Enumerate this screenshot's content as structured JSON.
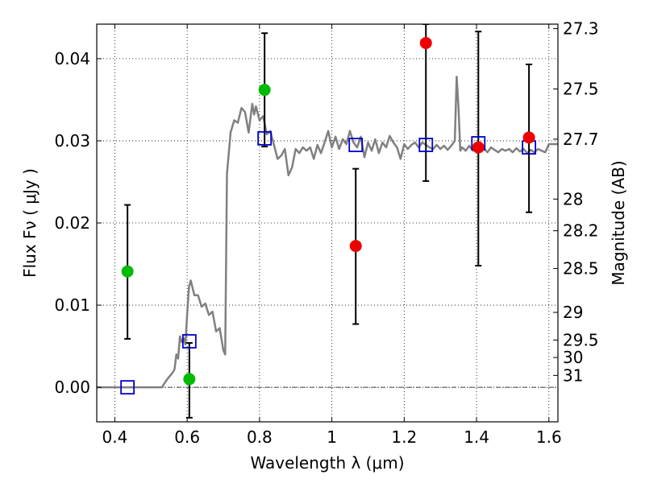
{
  "chart_data": {
    "type": "scatter",
    "xlabel": "Wavelength  λ (μm)",
    "ylabel": "Flux  Fν  ( μJy )",
    "y2label": "Magnitude (AB)",
    "xlim": [
      0.35,
      1.625
    ],
    "ylim": [
      -0.0042,
      0.0442
    ],
    "grid": true,
    "x_ticks": [
      {
        "value": 0.4,
        "label": "0.4"
      },
      {
        "value": 0.6,
        "label": "0.6"
      },
      {
        "value": 0.8,
        "label": "0.8"
      },
      {
        "value": 1.0,
        "label": "1"
      },
      {
        "value": 1.2,
        "label": "1.2"
      },
      {
        "value": 1.4,
        "label": "1.4"
      },
      {
        "value": 1.6,
        "label": "1.6"
      }
    ],
    "y_ticks": [
      {
        "value": 0.0,
        "label": "0.00"
      },
      {
        "value": 0.01,
        "label": "0.01"
      },
      {
        "value": 0.02,
        "label": "0.02"
      },
      {
        "value": 0.03,
        "label": "0.03"
      },
      {
        "value": 0.04,
        "label": "0.04"
      }
    ],
    "mag_ticks": [
      {
        "value": 27.3,
        "label": "27.3"
      },
      {
        "value": 27.5,
        "label": "27.5"
      },
      {
        "value": 27.7,
        "label": "27.7"
      },
      {
        "value": 28,
        "label": "28"
      },
      {
        "value": 28.2,
        "label": "28.2"
      },
      {
        "value": 28.5,
        "label": "28.5"
      },
      {
        "value": 29,
        "label": "29"
      },
      {
        "value": 29.5,
        "label": "29.5"
      },
      {
        "value": 30,
        "label": "30"
      },
      {
        "value": 31,
        "label": "31"
      }
    ],
    "colors": {
      "model": "#808080",
      "model_points": "#0000cc",
      "green_points": "#00bb00",
      "red_points": "#ee0000",
      "errorbar": "#000000",
      "grid": "#000000",
      "zero_line": "#000000"
    },
    "model_spectrum": [
      [
        0.35,
        0.0
      ],
      [
        0.53,
        0.0
      ],
      [
        0.545,
        0.001
      ],
      [
        0.56,
        0.0018
      ],
      [
        0.565,
        0.0022
      ],
      [
        0.57,
        0.004
      ],
      [
        0.575,
        0.0035
      ],
      [
        0.58,
        0.0062
      ],
      [
        0.585,
        0.0055
      ],
      [
        0.59,
        0.006
      ],
      [
        0.595,
        0.0052
      ],
      [
        0.6,
        0.009
      ],
      [
        0.605,
        0.0122
      ],
      [
        0.61,
        0.013
      ],
      [
        0.62,
        0.0112
      ],
      [
        0.63,
        0.0112
      ],
      [
        0.64,
        0.0098
      ],
      [
        0.65,
        0.0102
      ],
      [
        0.66,
        0.0088
      ],
      [
        0.67,
        0.0092
      ],
      [
        0.68,
        0.0068
      ],
      [
        0.69,
        0.0072
      ],
      [
        0.7,
        0.0045
      ],
      [
        0.705,
        0.004
      ],
      [
        0.71,
        0.026
      ],
      [
        0.72,
        0.031
      ],
      [
        0.73,
        0.0325
      ],
      [
        0.74,
        0.0322
      ],
      [
        0.75,
        0.034
      ],
      [
        0.76,
        0.0335
      ],
      [
        0.77,
        0.031
      ],
      [
        0.78,
        0.0345
      ],
      [
        0.785,
        0.0332
      ],
      [
        0.79,
        0.0342
      ],
      [
        0.8,
        0.0325
      ],
      [
        0.81,
        0.033
      ],
      [
        0.82,
        0.0308
      ],
      [
        0.83,
        0.0312
      ],
      [
        0.84,
        0.0295
      ],
      [
        0.85,
        0.0278
      ],
      [
        0.86,
        0.0282
      ],
      [
        0.87,
        0.029
      ],
      [
        0.88,
        0.0258
      ],
      [
        0.89,
        0.0268
      ],
      [
        0.9,
        0.029
      ],
      [
        0.91,
        0.0285
      ],
      [
        0.92,
        0.0292
      ],
      [
        0.93,
        0.0288
      ],
      [
        0.94,
        0.0292
      ],
      [
        0.95,
        0.0278
      ],
      [
        0.96,
        0.0295
      ],
      [
        0.97,
        0.0285
      ],
      [
        0.98,
        0.0298
      ],
      [
        0.99,
        0.0312
      ],
      [
        1.0,
        0.0292
      ],
      [
        1.01,
        0.0305
      ],
      [
        1.02,
        0.029
      ],
      [
        1.03,
        0.0302
      ],
      [
        1.04,
        0.0296
      ],
      [
        1.05,
        0.0312
      ],
      [
        1.06,
        0.0298
      ],
      [
        1.07,
        0.0292
      ],
      [
        1.08,
        0.0305
      ],
      [
        1.09,
        0.028
      ],
      [
        1.1,
        0.0298
      ],
      [
        1.11,
        0.0288
      ],
      [
        1.12,
        0.0302
      ],
      [
        1.13,
        0.0285
      ],
      [
        1.14,
        0.0298
      ],
      [
        1.15,
        0.0292
      ],
      [
        1.16,
        0.0306
      ],
      [
        1.17,
        0.0298
      ],
      [
        1.18,
        0.0292
      ],
      [
        1.19,
        0.0278
      ],
      [
        1.2,
        0.0296
      ],
      [
        1.21,
        0.029
      ],
      [
        1.22,
        0.0295
      ],
      [
        1.23,
        0.0298
      ],
      [
        1.24,
        0.0292
      ],
      [
        1.25,
        0.0298
      ],
      [
        1.26,
        0.0295
      ],
      [
        1.27,
        0.0292
      ],
      [
        1.28,
        0.029
      ],
      [
        1.29,
        0.0295
      ],
      [
        1.3,
        0.029
      ],
      [
        1.31,
        0.0294
      ],
      [
        1.32,
        0.0289
      ],
      [
        1.33,
        0.0294
      ],
      [
        1.34,
        0.03
      ],
      [
        1.345,
        0.0378
      ],
      [
        1.35,
        0.0342
      ],
      [
        1.355,
        0.0288
      ],
      [
        1.36,
        0.0292
      ],
      [
        1.37,
        0.0288
      ],
      [
        1.38,
        0.0294
      ],
      [
        1.39,
        0.0288
      ],
      [
        1.4,
        0.0292
      ],
      [
        1.41,
        0.0288
      ],
      [
        1.42,
        0.0291
      ],
      [
        1.43,
        0.0286
      ],
      [
        1.44,
        0.0292
      ],
      [
        1.45,
        0.0289
      ],
      [
        1.46,
        0.0286
      ],
      [
        1.47,
        0.029
      ],
      [
        1.48,
        0.0288
      ],
      [
        1.49,
        0.029
      ],
      [
        1.5,
        0.0286
      ],
      [
        1.51,
        0.0291
      ],
      [
        1.52,
        0.0287
      ],
      [
        1.53,
        0.029
      ],
      [
        1.54,
        0.0285
      ],
      [
        1.55,
        0.0289
      ],
      [
        1.56,
        0.0286
      ],
      [
        1.57,
        0.029
      ],
      [
        1.58,
        0.0288
      ],
      [
        1.59,
        0.0286
      ],
      [
        1.6,
        0.0296
      ],
      [
        1.625,
        0.0296
      ]
    ],
    "model_points": [
      {
        "x": 0.435,
        "y": 0.0
      },
      {
        "x": 0.606,
        "y": 0.0056
      },
      {
        "x": 0.814,
        "y": 0.0303
      },
      {
        "x": 1.066,
        "y": 0.0295
      },
      {
        "x": 1.26,
        "y": 0.0295
      },
      {
        "x": 1.405,
        "y": 0.0297
      },
      {
        "x": 1.545,
        "y": 0.0292
      }
    ],
    "green_points": [
      {
        "x": 0.435,
        "y": 0.0141,
        "yerr_low": 0.0059,
        "yerr_high": 0.0222
      },
      {
        "x": 0.606,
        "y": 0.001,
        "yerr_low": -0.0037,
        "yerr_high": 0.0054
      },
      {
        "x": 0.814,
        "y": 0.0362,
        "yerr_low": 0.0293,
        "yerr_high": 0.0431
      }
    ],
    "red_points": [
      {
        "x": 1.066,
        "y": 0.0172,
        "yerr_low": 0.0077,
        "yerr_high": 0.0266
      },
      {
        "x": 1.26,
        "y": 0.0419,
        "yerr_low": 0.0251,
        "yerr_high": 0.0442
      },
      {
        "x": 1.405,
        "y": 0.0292,
        "yerr_low": 0.0148,
        "yerr_high": 0.0433
      },
      {
        "x": 1.545,
        "y": 0.0304,
        "yerr_low": 0.0213,
        "yerr_high": 0.0393
      }
    ]
  }
}
